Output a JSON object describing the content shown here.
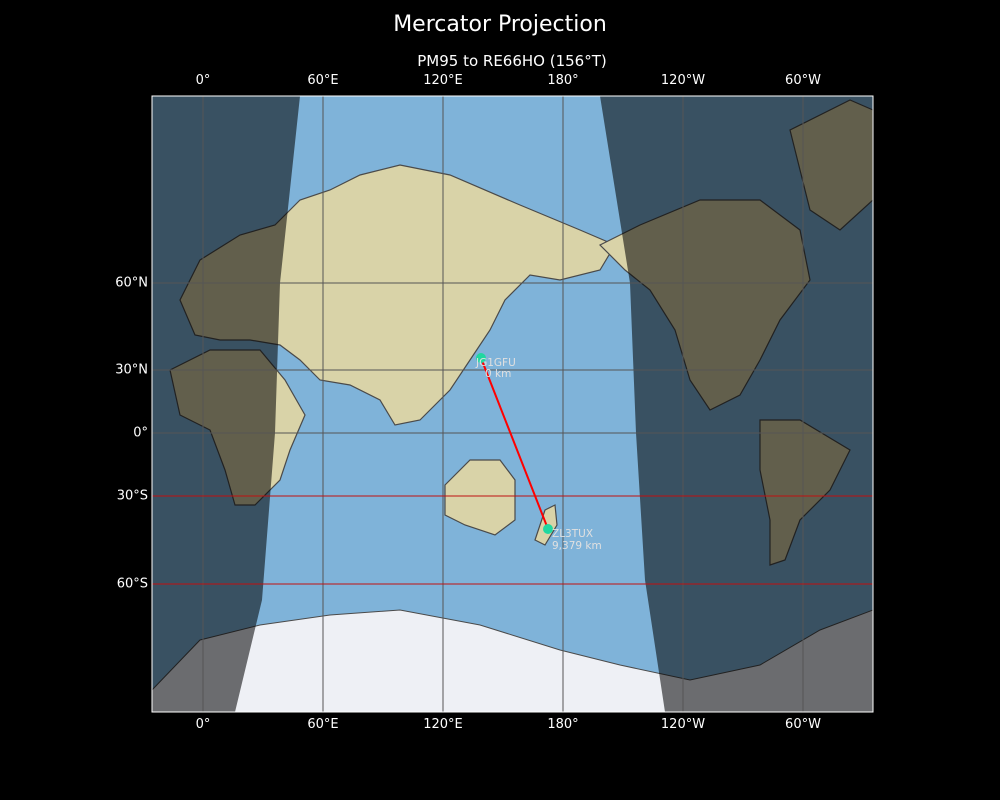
{
  "title": "Mercator Projection",
  "subtitle": "PM95 to RE66HO (156°T)",
  "lon_labels": [
    "0°",
    "60°E",
    "120°E",
    "180°",
    "120°W",
    "60°W"
  ],
  "lat_labels": [
    "60°N",
    "30°N",
    "0°",
    "30°S",
    "60°S"
  ],
  "stations": [
    {
      "call": "JG1GFU",
      "distance": "0 km",
      "color": "#20d8a0"
    },
    {
      "call": "ZL3TUX",
      "distance": "9,379 km",
      "color": "#20d8a0"
    }
  ],
  "path_color": "#ff0000",
  "colors": {
    "ocean": "#7fb3d9",
    "night": "#000000",
    "highlight_lat_lines": "#c01010"
  }
}
